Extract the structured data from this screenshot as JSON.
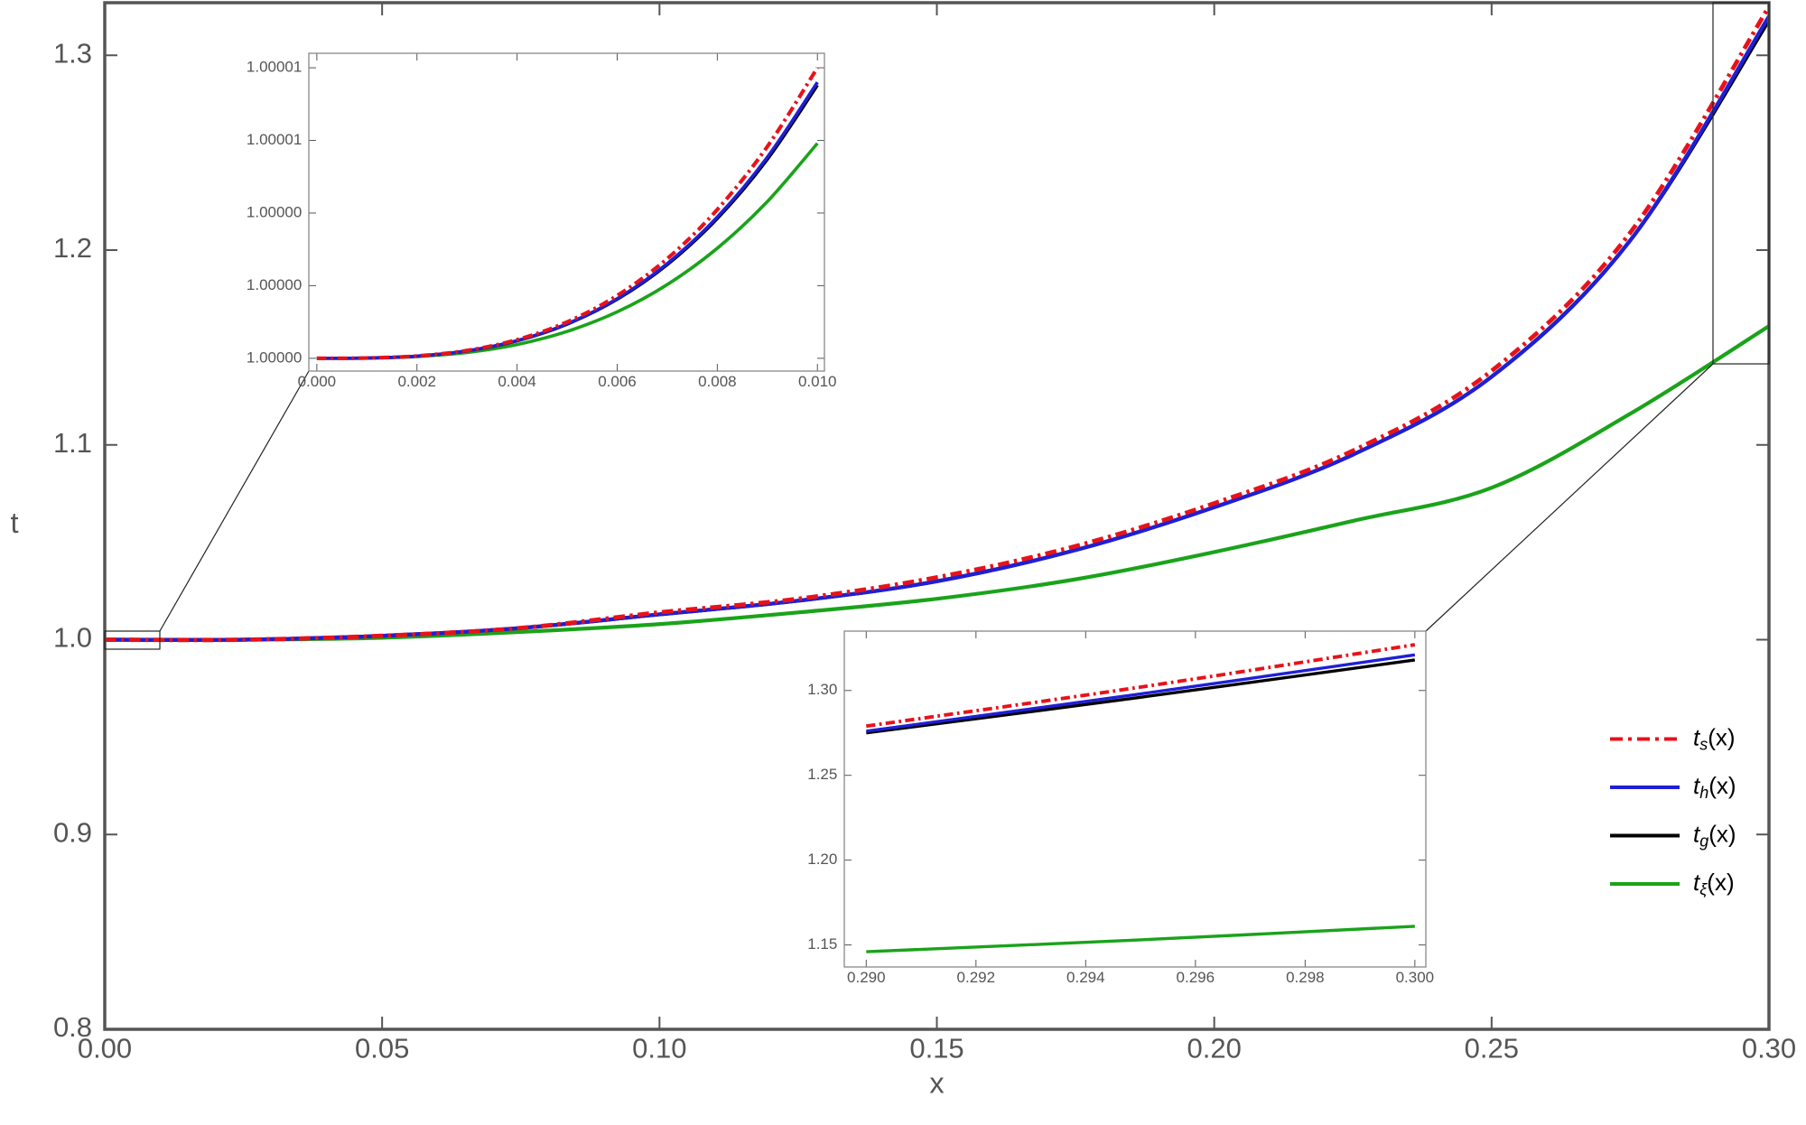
{
  "chart_data": [
    {
      "type": "line",
      "x_label": "x",
      "y_label": "t",
      "legend": "lower right",
      "grid": false,
      "x": [
        0,
        0.025,
        0.05,
        0.075,
        0.1,
        0.125,
        0.15,
        0.175,
        0.2,
        0.225,
        0.25,
        0.275,
        0.3
      ],
      "series": [
        {
          "name": "ts(x)",
          "color": "#e8121a",
          "style": "dashdot",
          "values": [
            1.0,
            1.0,
            1.002,
            1.006,
            1.014,
            1.021,
            1.032,
            1.048,
            1.07,
            1.097,
            1.138,
            1.209,
            1.325
          ]
        },
        {
          "name": "th(x)",
          "color": "#1f1fd6",
          "style": "solid",
          "values": [
            1.0,
            1.0,
            1.002,
            1.006,
            1.013,
            1.02,
            1.03,
            1.046,
            1.068,
            1.095,
            1.135,
            1.205,
            1.32
          ]
        },
        {
          "name": "tg(x)",
          "color": "#000000",
          "style": "solid",
          "values": [
            1.0,
            1.0,
            1.002,
            1.006,
            1.013,
            1.02,
            1.03,
            1.046,
            1.068,
            1.095,
            1.135,
            1.205,
            1.318
          ]
        },
        {
          "name": "tξ(x)",
          "color": "#1aa31a",
          "style": "solid",
          "values": [
            1.0,
            1.0,
            1.001,
            1.004,
            1.008,
            1.014,
            1.021,
            1.031,
            1.045,
            1.061,
            1.078,
            1.116,
            1.161
          ]
        }
      ],
      "xlim": [
        0,
        0.3
      ],
      "ylim": [
        0.8,
        1.327
      ],
      "xticks": [
        {
          "value": 0,
          "label": "0.00"
        },
        {
          "value": 0.05,
          "label": "0.05"
        },
        {
          "value": 0.1,
          "label": "0.10"
        },
        {
          "value": 0.15,
          "label": "0.15"
        },
        {
          "value": 0.2,
          "label": "0.20"
        },
        {
          "value": 0.25,
          "label": "0.25"
        },
        {
          "value": 0.3,
          "label": "0.30"
        }
      ],
      "yticks": [
        0.8,
        0.9,
        {
          "value": 1,
          "label": "1.0"
        },
        1.1,
        1.2,
        1.3
      ]
    },
    {
      "type": "line",
      "grid": false,
      "x": [
        0,
        0.001,
        0.002,
        0.003,
        0.004,
        0.005,
        0.006,
        0.007,
        0.008,
        0.009,
        0.01
      ],
      "series": [
        {
          "color": "#e8121a",
          "style": "dashdot",
          "values": [
            1.0,
            1.00000001,
            1.00000008,
            1.00000027,
            1.00000064,
            1.00000125,
            1.00000216,
            1.00000343,
            1.00000512,
            1.00000729,
            1.00001
          ]
        },
        {
          "color": "#1f1fd6",
          "style": "solid",
          "values": [
            1.0,
            1.0000000095,
            1.000000076,
            1.0000002565,
            1.000000608,
            1.0000011875,
            1.000002052,
            1.0000032585,
            1.000004864,
            1.0000069255,
            1.0000095
          ]
        },
        {
          "color": "#000000",
          "style": "solid",
          "values": [
            1.0,
            1.0000000094,
            1.0000000752,
            1.0000002538,
            1.0000006016,
            1.000001175,
            1.0000020304,
            1.0000032242,
            1.0000048128,
            1.0000068526,
            1.0000094
          ]
        },
        {
          "color": "#1aa31a",
          "style": "solid",
          "values": [
            1.0,
            1.0000000074,
            1.0000000592,
            1.0000001998,
            1.0000004736,
            1.000000925,
            1.0000015984,
            1.0000025382,
            1.0000037888,
            1.0000053946,
            1.0000074
          ]
        }
      ],
      "xlim": [
        -0.00016,
        0.01014
      ],
      "ylim": [
        0.99999956,
        1.0000105
      ],
      "xticks": [
        {
          "value": 0,
          "label": "0.000"
        },
        {
          "value": 0.002,
          "label": "0.002"
        },
        {
          "value": 0.004,
          "label": "0.004"
        },
        {
          "value": 0.006,
          "label": "0.006"
        },
        {
          "value": 0.008,
          "label": "0.008"
        },
        {
          "value": 0.01,
          "label": "0.010"
        }
      ],
      "yticks": [
        {
          "value": 1,
          "label": "1.00000"
        },
        {
          "value": 1.0000025,
          "label": "1.00000"
        },
        {
          "value": 1.000005,
          "label": "1.00000"
        },
        {
          "value": 1.0000075,
          "label": "1.00001"
        },
        {
          "value": 1.00001,
          "label": "1.00001"
        }
      ]
    },
    {
      "type": "line",
      "grid": false,
      "x": [
        0.29,
        0.295,
        0.3
      ],
      "series": [
        {
          "color": "#e8121a",
          "style": "dashdot",
          "values": [
            1.279,
            1.302,
            1.327
          ]
        },
        {
          "color": "#1f1fd6",
          "style": "solid",
          "values": [
            1.276,
            1.298,
            1.321
          ]
        },
        {
          "color": "#000000",
          "style": "solid",
          "values": [
            1.275,
            1.296,
            1.318
          ]
        },
        {
          "color": "#1aa31a",
          "style": "solid",
          "values": [
            1.146,
            1.153,
            1.161
          ]
        }
      ],
      "xlim": [
        0.2896,
        0.3002
      ],
      "ylim": [
        1.137,
        1.335
      ],
      "xticks": [
        {
          "value": 0.29,
          "label": "0.290"
        },
        {
          "value": 0.292,
          "label": "0.292"
        },
        {
          "value": 0.294,
          "label": "0.294"
        },
        {
          "value": 0.296,
          "label": "0.296"
        },
        {
          "value": 0.298,
          "label": "0.298"
        },
        {
          "value": 0.3,
          "label": "0.300"
        }
      ],
      "yticks": [
        1.15,
        {
          "value": 1.2,
          "label": "1.20"
        },
        1.25,
        {
          "value": 1.3,
          "label": "1.30"
        }
      ]
    }
  ]
}
